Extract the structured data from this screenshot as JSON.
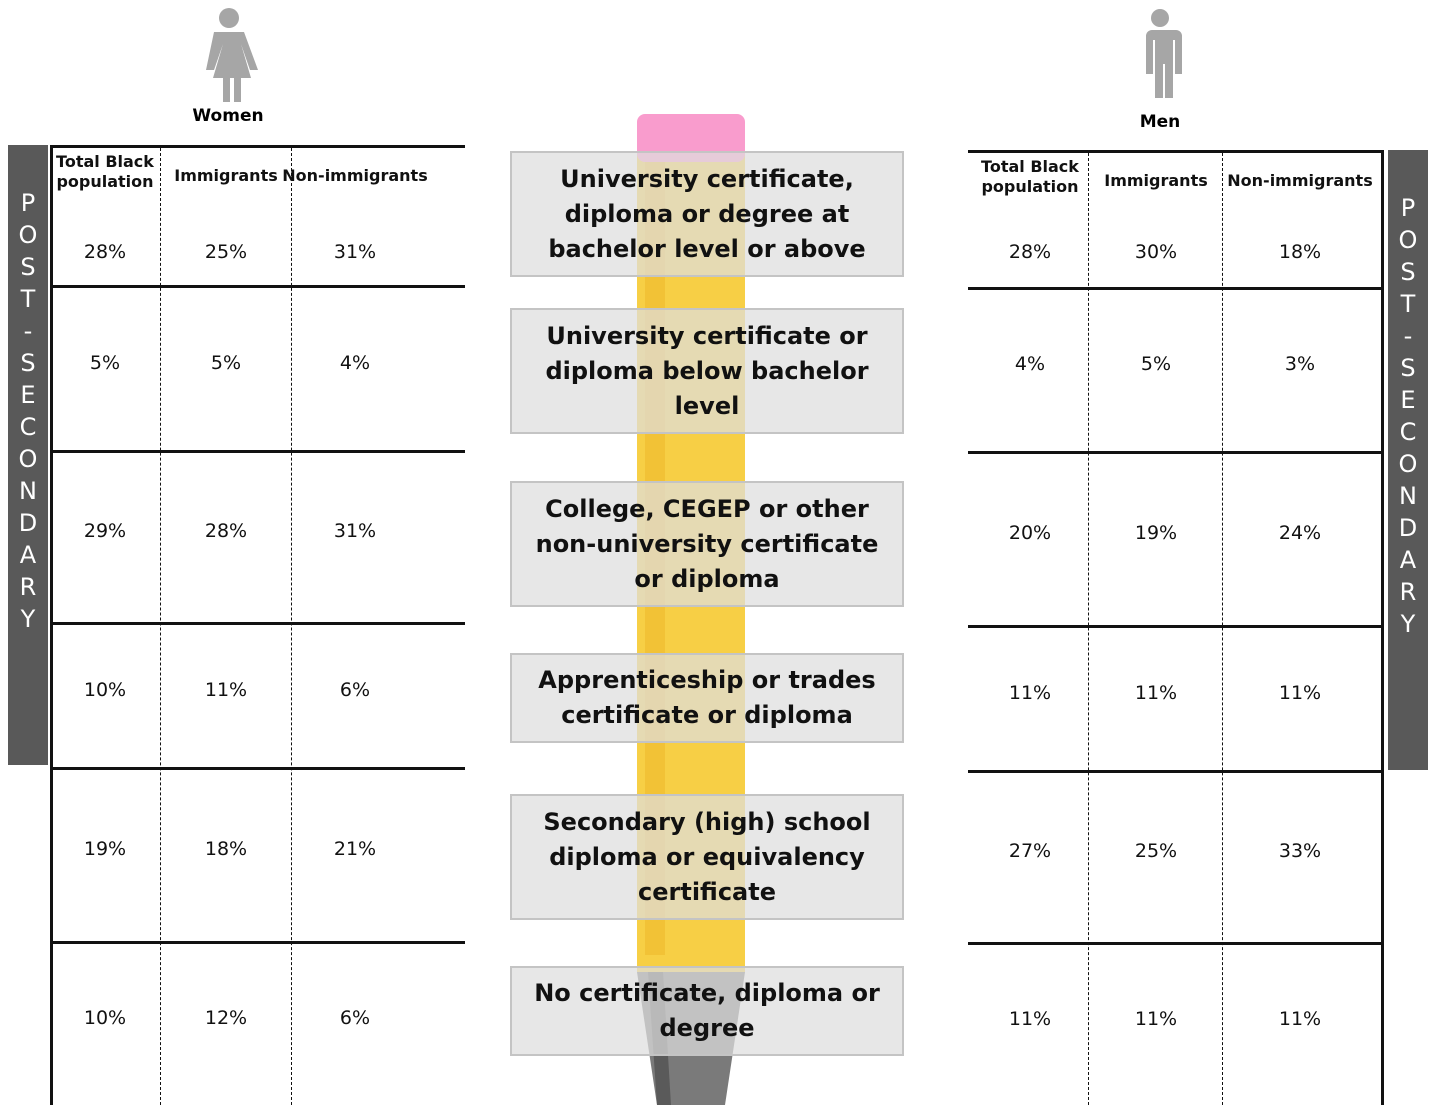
{
  "women": {
    "label": "Women",
    "headers": [
      "Total Black population",
      "Immigrants",
      "Non-immigrants"
    ],
    "rows": [
      [
        "28%",
        "25%",
        "31%"
      ],
      [
        "5%",
        "5%",
        "4%"
      ],
      [
        "29%",
        "28%",
        "31%"
      ],
      [
        "10%",
        "11%",
        "6%"
      ],
      [
        "19%",
        "18%",
        "21%"
      ],
      [
        "10%",
        "12%",
        "6%"
      ]
    ]
  },
  "men": {
    "label": "Men",
    "headers": [
      "Total Black population",
      "Immigrants",
      "Non-immigrants"
    ],
    "rows": [
      [
        "28%",
        "30%",
        "18%"
      ],
      [
        "4%",
        "5%",
        "3%"
      ],
      [
        "20%",
        "19%",
        "24%"
      ],
      [
        "11%",
        "11%",
        "11%"
      ],
      [
        "27%",
        "25%",
        "33%"
      ],
      [
        "11%",
        "11%",
        "11%"
      ]
    ]
  },
  "side_label": "POST-SECONDARY",
  "levels": [
    "University certificate, diploma or degree at bachelor level or above",
    "University certificate or diploma below bachelor level",
    "College, CEGEP or other non-university certificate or diploma",
    "Apprenticeship or trades certificate or diploma",
    "Secondary (high) school diploma or equivalency certificate",
    "No certificate, diploma or degree"
  ]
}
